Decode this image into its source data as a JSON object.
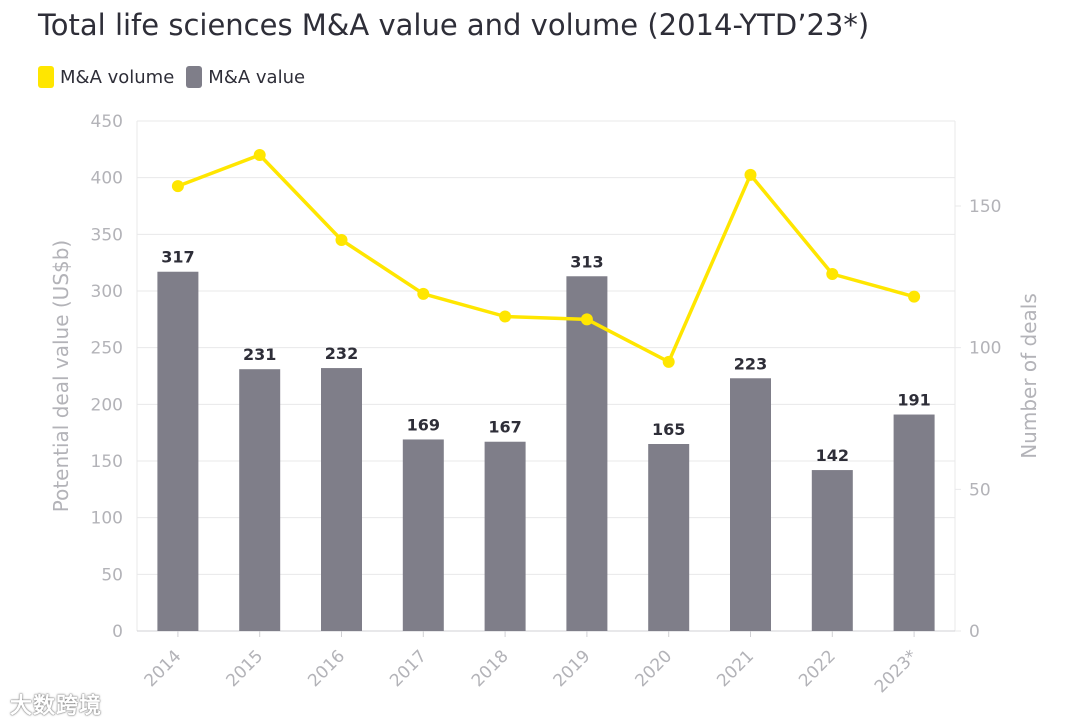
{
  "title": "Total life sciences M&A value and volume (2014-YTD’23*)",
  "legend": {
    "volume_label": "M&A volume",
    "value_label": "M&A value"
  },
  "colors": {
    "volume": "#ffe600",
    "value": "#7f7e89",
    "grid": "#e8e8ea",
    "axis_text": "#b3b3b8",
    "label_text": "#2e2e38"
  },
  "watermark": "大数跨境",
  "chart_data": {
    "type": "bar+line",
    "categories": [
      "2014",
      "2015",
      "2016",
      "2017",
      "2018",
      "2019",
      "2020",
      "2021",
      "2022",
      "2023*"
    ],
    "series": [
      {
        "name": "M&A value",
        "type": "bar",
        "axis": "left",
        "values": [
          317,
          231,
          232,
          169,
          167,
          313,
          165,
          223,
          142,
          191
        ]
      },
      {
        "name": "M&A volume",
        "type": "line",
        "axis": "right",
        "values": [
          157,
          168,
          138,
          119,
          111,
          110,
          95,
          161,
          126,
          118
        ]
      }
    ],
    "ylabel": "Potential deal value (US$b)",
    "y2label": "Number of deals",
    "ylim": [
      0,
      450
    ],
    "y2lim": [
      0,
      180
    ],
    "yticks": [
      0,
      50,
      100,
      150,
      200,
      250,
      300,
      350,
      400,
      450
    ],
    "y2ticks": [
      0,
      50,
      100,
      150
    ]
  }
}
